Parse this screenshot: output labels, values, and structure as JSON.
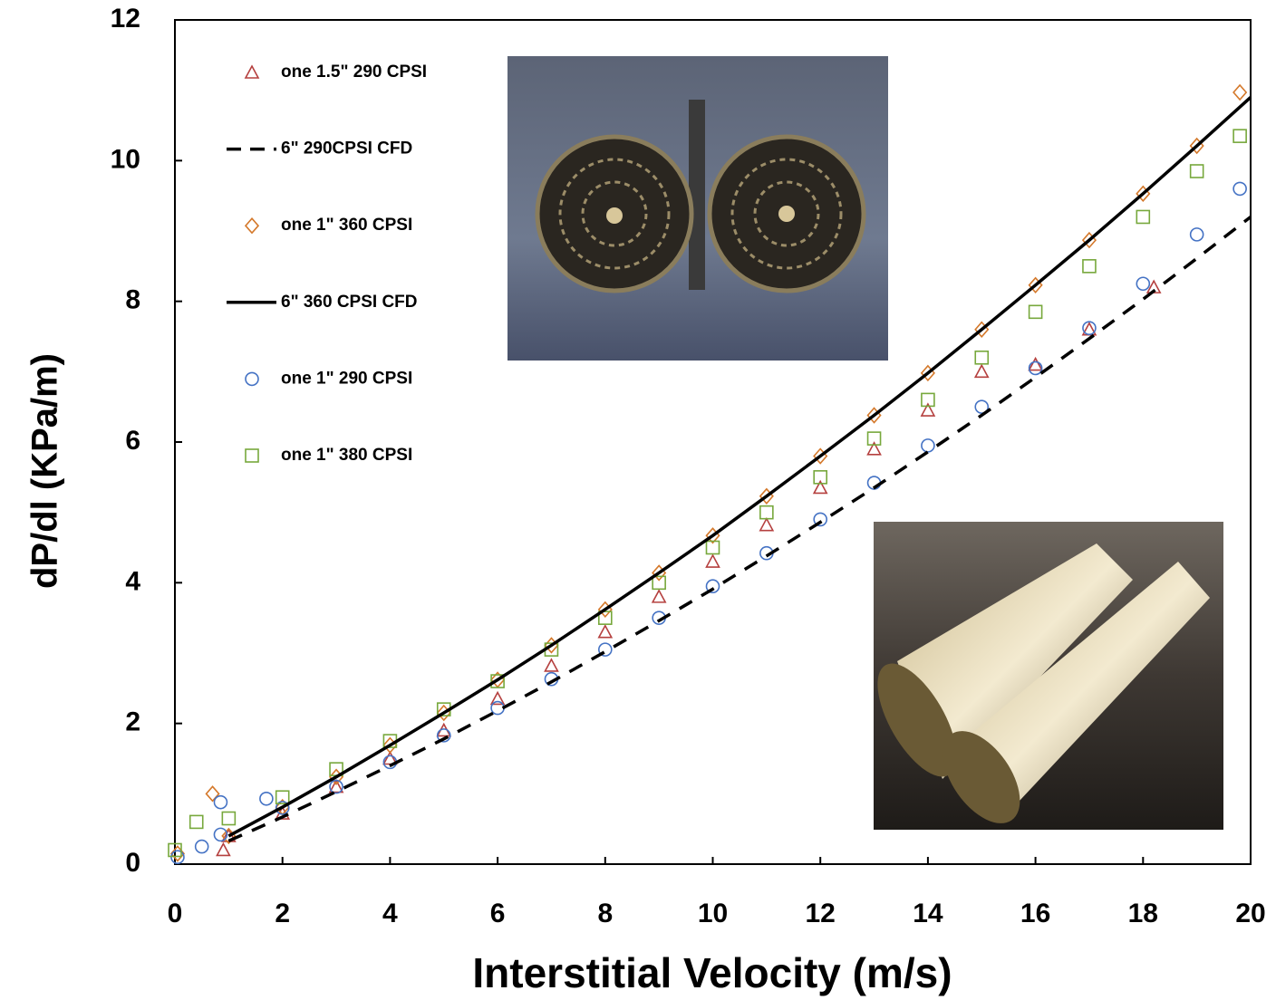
{
  "chart_data": {
    "type": "scatter",
    "x_label": "Interstitial Velocity (m/s)",
    "y_label": "dP/dl (KPa/m)",
    "xlim": [
      0,
      20
    ],
    "xticks": [
      0,
      2,
      4,
      6,
      8,
      10,
      12,
      14,
      16,
      18,
      20
    ],
    "ylim": [
      0,
      12
    ],
    "yticks": [
      0,
      2,
      4,
      6,
      8,
      10,
      12
    ],
    "series": [
      {
        "name": "one 1.5\" 290 CPSI",
        "kind": "scatter",
        "marker": "triangle",
        "color": "#b5403f",
        "x": [
          0.9,
          1,
          2,
          3,
          4,
          5,
          6,
          7,
          8,
          9,
          10,
          11,
          12,
          13,
          14,
          15,
          16,
          17,
          18.2
        ],
        "values": [
          0.2,
          0.4,
          0.72,
          1.1,
          1.5,
          1.9,
          2.35,
          2.82,
          3.3,
          3.8,
          4.3,
          4.82,
          5.35,
          5.9,
          6.45,
          7.0,
          7.1,
          7.6,
          8.2
        ]
      },
      {
        "name": "6\" 290CPSI CFD",
        "kind": "line",
        "dash": true,
        "color": "#000000",
        "x": [
          1,
          2,
          3,
          4,
          5,
          6,
          7,
          8,
          9,
          10,
          11,
          12,
          13,
          14,
          15,
          16,
          17,
          18,
          19,
          20
        ],
        "values": [
          0.33,
          0.67,
          1.03,
          1.4,
          1.78,
          2.18,
          2.59,
          3.02,
          3.46,
          3.91,
          4.38,
          4.86,
          5.35,
          5.86,
          6.38,
          6.92,
          7.47,
          8.03,
          8.61,
          9.2
        ]
      },
      {
        "name": "one 1\" 360 CPSI",
        "kind": "scatter",
        "marker": "diamond",
        "color": "#d4782a",
        "x": [
          0.05,
          0.7,
          1,
          2,
          3,
          4,
          5,
          6,
          7,
          8,
          9,
          10,
          11,
          12,
          13,
          14,
          15,
          16,
          17,
          18,
          19,
          19.8
        ],
        "values": [
          0.15,
          1.0,
          0.4,
          0.81,
          1.24,
          1.69,
          2.15,
          2.62,
          3.11,
          3.62,
          4.14,
          4.67,
          5.23,
          5.8,
          6.38,
          6.98,
          7.6,
          8.23,
          8.87,
          9.53,
          10.21,
          10.97
        ]
      },
      {
        "name": "6\" 360 CPSI CFD",
        "kind": "line",
        "dash": false,
        "color": "#000000",
        "x": [
          1,
          2,
          3,
          4,
          5,
          6,
          7,
          8,
          9,
          10,
          11,
          12,
          13,
          14,
          15,
          16,
          17,
          18,
          19,
          20
        ],
        "values": [
          0.4,
          0.81,
          1.24,
          1.69,
          2.15,
          2.62,
          3.11,
          3.62,
          4.14,
          4.67,
          5.23,
          5.8,
          6.38,
          6.98,
          7.6,
          8.23,
          8.87,
          9.53,
          10.21,
          10.9
        ]
      },
      {
        "name": "one 1\" 290 CPSI",
        "kind": "scatter",
        "marker": "circle",
        "color": "#4472c4",
        "x": [
          0.05,
          0.5,
          0.85,
          0.85,
          1.7,
          2,
          3,
          4,
          5,
          6,
          7,
          8,
          9,
          10,
          11,
          12,
          13,
          14,
          15,
          16,
          17,
          18,
          19,
          19.8
        ],
        "values": [
          0.1,
          0.25,
          0.88,
          0.42,
          0.93,
          0.8,
          1.1,
          1.45,
          1.83,
          2.22,
          2.63,
          3.05,
          3.5,
          3.95,
          4.42,
          4.9,
          5.42,
          5.95,
          6.5,
          7.05,
          7.62,
          8.25,
          8.95,
          9.6
        ]
      },
      {
        "name": "one 1\" 380 CPSI",
        "kind": "scatter",
        "marker": "square",
        "color": "#77a83c",
        "x": [
          0,
          0.4,
          1,
          2,
          3,
          4,
          5,
          6,
          7,
          8,
          9,
          10,
          11,
          12,
          13,
          14,
          15,
          16,
          17,
          18,
          19,
          19.8
        ],
        "values": [
          0.2,
          0.6,
          0.65,
          0.95,
          1.35,
          1.75,
          2.2,
          2.6,
          3.05,
          3.5,
          4.0,
          4.5,
          5.0,
          5.5,
          6.05,
          6.6,
          7.2,
          7.85,
          8.5,
          9.2,
          9.85,
          10.35
        ]
      }
    ]
  }
}
